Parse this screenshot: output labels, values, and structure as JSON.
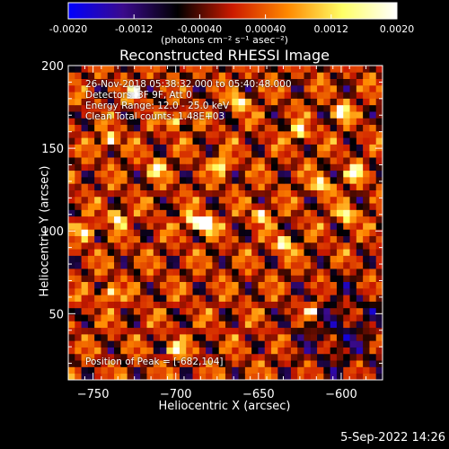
{
  "chart_data": {
    "type": "heatmap",
    "title": "Reconstructed RHESSI Image",
    "xlabel": "Heliocentric X (arcsec)",
    "ylabel": "Heliocentric Y (arcsec)",
    "xlim": [
      -765,
      -575
    ],
    "ylim": [
      10,
      200
    ],
    "xticks": [
      -750,
      -700,
      -650,
      -600
    ],
    "yticks": [
      50,
      100,
      150,
      200
    ],
    "colorbar": {
      "min": -0.002,
      "max": 0.002,
      "tick_labels": [
        "-0.0020",
        "-0.0012",
        "-0.00040",
        "0.00040",
        "0.0012",
        "0.0020"
      ],
      "units_label": "(photons cm⁻² s⁻¹ asec⁻²)",
      "colors": [
        "#0000ff",
        "#3a0a8c",
        "#000000",
        "#cc1a00",
        "#ff8800",
        "#ffff66",
        "#ffffff"
      ]
    },
    "annotations": {
      "time_range": "26-Nov-2018 05:38:32.000 to 05:40:48.000",
      "detectors": "Detectors: 3F 9F, Att 0",
      "energy_range": "Energy Range: 12.0 - 25.0 keV",
      "clean_counts": "Clean    Total counts: 1.48E+03",
      "peak_position": "Position of Peak = [-682,104]"
    },
    "peak": {
      "x": -682,
      "y": 104
    },
    "bright_spots": [
      [
        -754,
        100
      ],
      [
        -740,
        155
      ],
      [
        -735,
        108
      ],
      [
        -725,
        183
      ],
      [
        -712,
        138
      ],
      [
        -700,
        168
      ],
      [
        -690,
        106
      ],
      [
        -682,
        104
      ],
      [
        -672,
        140
      ],
      [
        -662,
        178
      ],
      [
        -648,
        110
      ],
      [
        -635,
        92
      ],
      [
        -625,
        160
      ],
      [
        -612,
        128
      ],
      [
        -600,
        172
      ],
      [
        -592,
        135
      ],
      [
        -617,
        52
      ],
      [
        -597,
        110
      ],
      [
        -740,
        62
      ],
      [
        -700,
        28
      ]
    ],
    "timestamp": "5-Sep-2022 14:26"
  }
}
